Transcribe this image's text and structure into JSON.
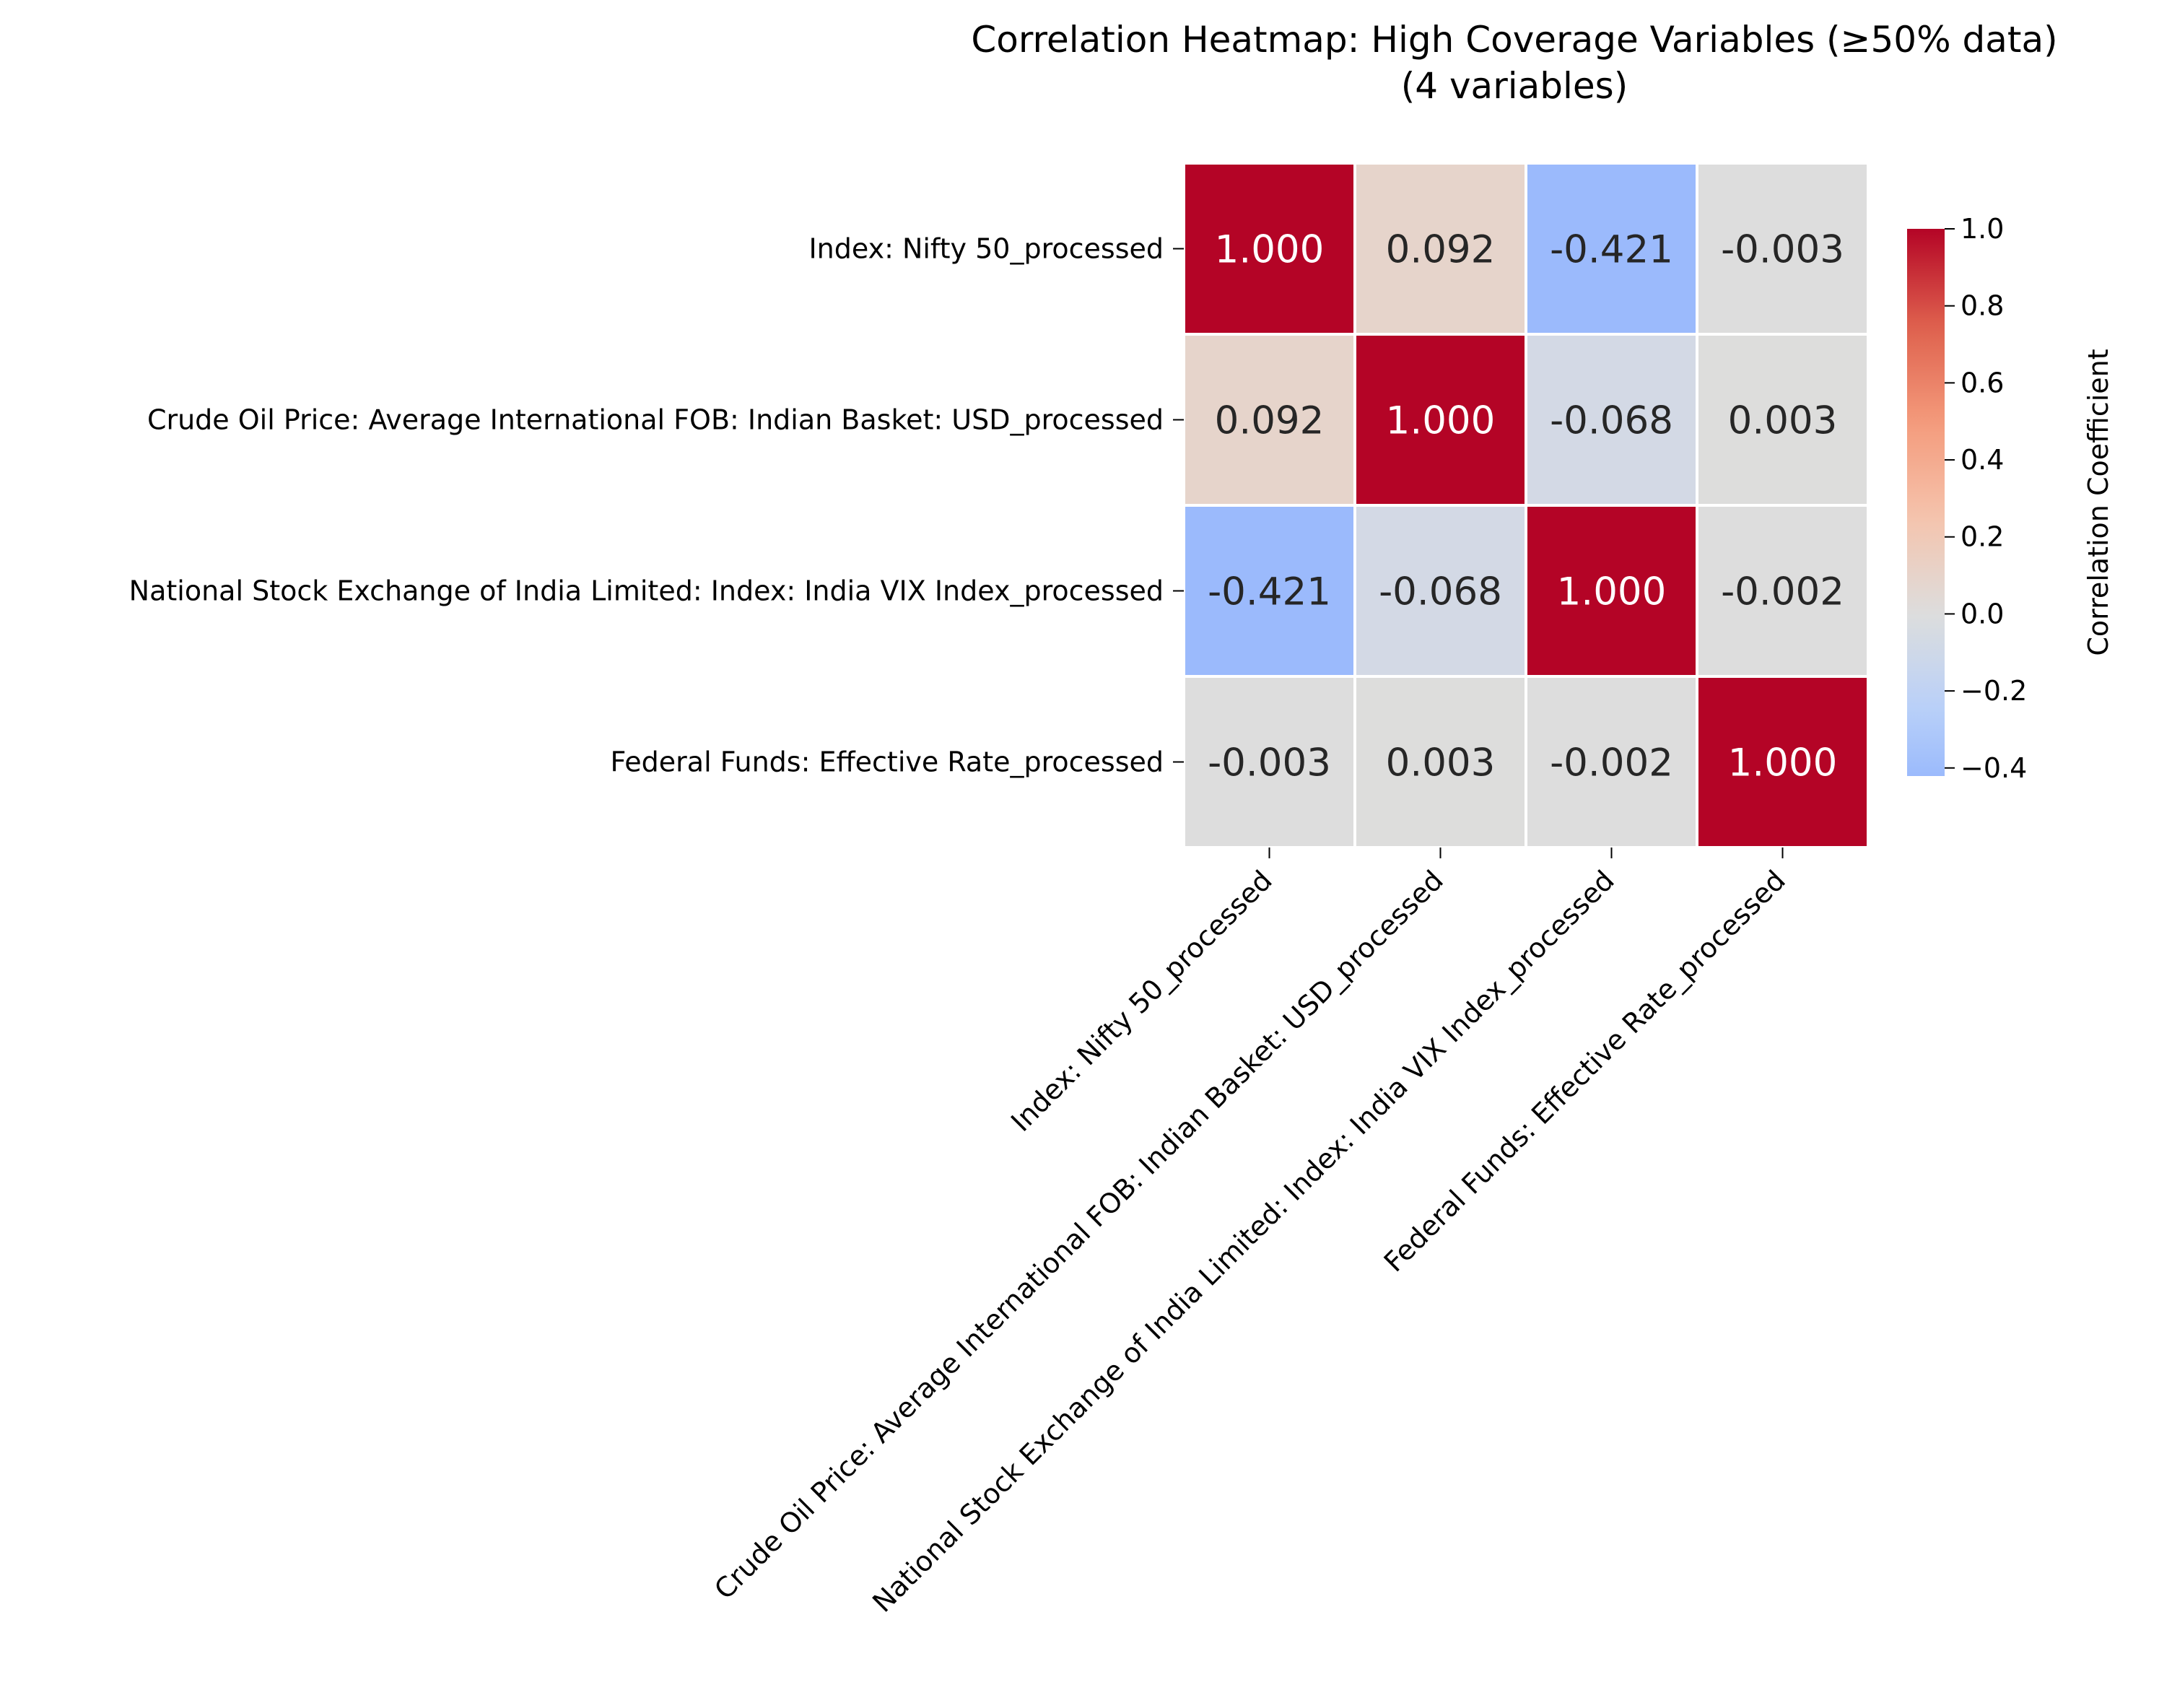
{
  "chart_data": {
    "type": "heatmap",
    "title": "Correlation Heatmap: High Coverage Variables (≥50% data)",
    "subtitle": "(4 variables)",
    "row_labels": [
      "Index: Nifty 50_processed",
      "Crude Oil Price: Average International FOB: Indian Basket: USD_processed",
      "National Stock Exchange of India Limited: Index: India VIX Index_processed",
      "Federal Funds: Effective Rate_processed"
    ],
    "col_labels": [
      "Index: Nifty 50_processed",
      "Crude Oil Price: Average International FOB: Indian Basket: USD_processed",
      "National Stock Exchange of India Limited: Index: India VIX Index_processed",
      "Federal Funds: Effective Rate_processed"
    ],
    "values": [
      [
        1.0,
        0.092,
        -0.421,
        -0.003
      ],
      [
        0.092,
        1.0,
        -0.068,
        0.003
      ],
      [
        -0.421,
        -0.068,
        1.0,
        -0.002
      ],
      [
        -0.003,
        0.003,
        -0.002,
        1.0
      ]
    ],
    "cell_labels": [
      [
        "1.000",
        "0.092",
        "-0.421",
        "-0.003"
      ],
      [
        "0.092",
        "1.000",
        "-0.068",
        "0.003"
      ],
      [
        "-0.421",
        "-0.068",
        "1.000",
        "-0.002"
      ],
      [
        "-0.003",
        "0.003",
        "-0.002",
        "1.000"
      ]
    ],
    "colorbar": {
      "label": "Correlation Coefficient",
      "range": [
        -0.421,
        1.0
      ],
      "ticks": [
        1.0,
        0.8,
        0.6,
        0.4,
        0.2,
        0.0,
        -0.2,
        -0.4
      ],
      "tick_labels": [
        "1.0",
        "0.8",
        "0.6",
        "0.4",
        "0.2",
        "0.0",
        "−0.2",
        "−0.4"
      ],
      "colormap": "coolwarm",
      "center": 0.0,
      "placement": "right"
    }
  }
}
